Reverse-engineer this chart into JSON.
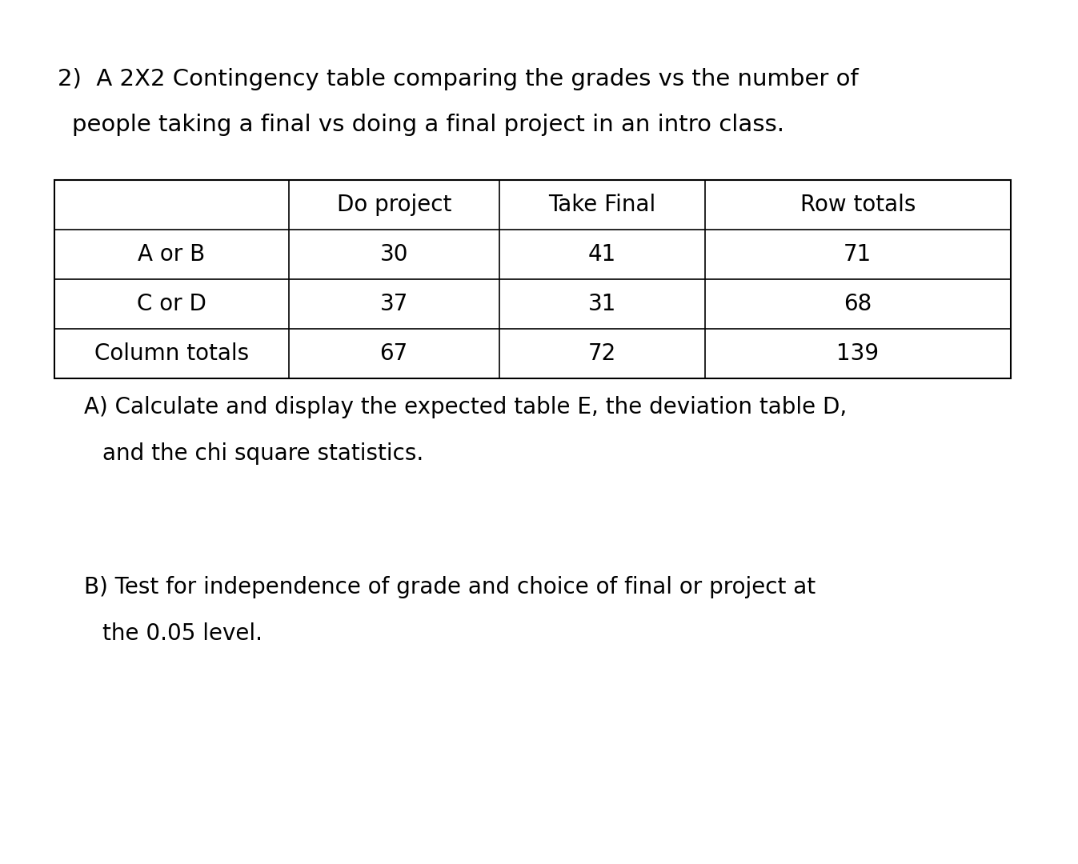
{
  "title_line1": "2)  A 2X2 Contingency table comparing the grades vs the number of",
  "title_line2": "people taking a final vs doing a final project in an intro class.",
  "table_headers": [
    "",
    "Do project",
    "Take Final",
    "Row totals"
  ],
  "table_rows": [
    [
      "A or B",
      "30",
      "41",
      "71"
    ],
    [
      "C or D",
      "37",
      "31",
      "68"
    ],
    [
      "Column totals",
      "67",
      "72",
      "139"
    ]
  ],
  "subtitle_a_line1": "A) Calculate and display the expected table E, the deviation table D,",
  "subtitle_a_line2": "and the chi square statistics.",
  "subtitle_b_line1": "B) Test for independence of grade and choice of final or project at",
  "subtitle_b_line2": "the 0.05 level.",
  "bg_color": "#ffffff",
  "text_color": "#000000",
  "font_size_title": 21,
  "font_size_table": 20,
  "font_size_sub": 20
}
